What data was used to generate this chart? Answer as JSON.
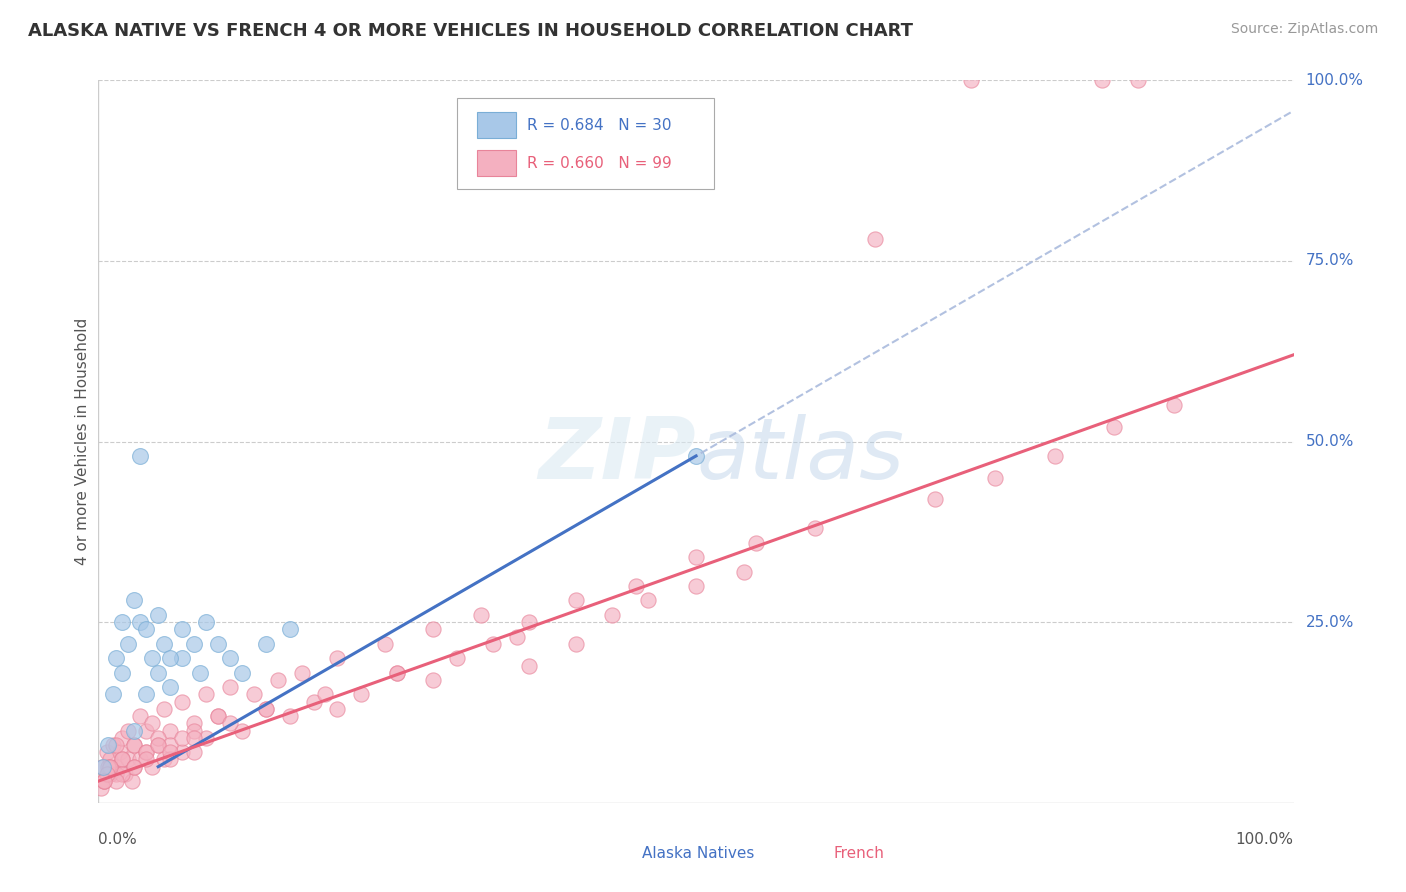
{
  "title": "ALASKA NATIVE VS FRENCH 4 OR MORE VEHICLES IN HOUSEHOLD CORRELATION CHART",
  "source": "Source: ZipAtlas.com",
  "ylabel": "4 or more Vehicles in Household",
  "alaska_color": "#a8c8e8",
  "alaska_edge_color": "#7aaed6",
  "french_color": "#f4b0c0",
  "french_edge_color": "#e8849a",
  "alaska_line_color": "#4472c4",
  "french_line_color": "#e8607a",
  "dash_line_color": "#aabbdd",
  "watermark_color": "#dde8f0",
  "right_tick_color": "#4472c4",
  "alaska_x": [
    0.4,
    0.8,
    1.2,
    1.5,
    2.0,
    2.5,
    3.0,
    3.5,
    4.0,
    4.5,
    5.0,
    5.5,
    6.0,
    7.0,
    8.5,
    10.0,
    11.0,
    12.0,
    14.0,
    16.0,
    2.0,
    3.0,
    4.0,
    5.0,
    6.0,
    7.0,
    8.0,
    9.0,
    3.5,
    50.0
  ],
  "alaska_y": [
    5.0,
    8.0,
    15.0,
    20.0,
    18.0,
    22.0,
    10.0,
    25.0,
    15.0,
    20.0,
    18.0,
    22.0,
    16.0,
    20.0,
    18.0,
    22.0,
    20.0,
    18.0,
    22.0,
    24.0,
    25.0,
    28.0,
    24.0,
    26.0,
    20.0,
    24.0,
    22.0,
    25.0,
    48.0,
    48.0
  ],
  "french_x": [
    0.2,
    0.3,
    0.5,
    0.7,
    0.8,
    1.0,
    1.2,
    1.5,
    1.8,
    2.0,
    2.2,
    2.5,
    2.8,
    3.0,
    3.5,
    4.0,
    4.5,
    5.0,
    5.5,
    6.0,
    7.0,
    8.0,
    9.0,
    10.0,
    12.0,
    14.0,
    16.0,
    18.0,
    20.0,
    22.0,
    25.0,
    28.0,
    30.0,
    33.0,
    36.0,
    40.0,
    43.0,
    46.0,
    50.0,
    54.0,
    0.5,
    1.0,
    1.5,
    2.0,
    3.0,
    4.0,
    5.0,
    6.0,
    8.0,
    10.0,
    1.0,
    2.0,
    3.0,
    4.0,
    5.0,
    6.0,
    7.0,
    8.0,
    0.8,
    1.5,
    2.5,
    3.5,
    4.5,
    5.5,
    7.0,
    9.0,
    11.0,
    13.0,
    15.0,
    17.0,
    20.0,
    24.0,
    28.0,
    32.0,
    36.0,
    40.0,
    45.0,
    50.0,
    60.0,
    70.0,
    75.0,
    80.0,
    85.0,
    90.0,
    55.0,
    35.0,
    25.0,
    19.0,
    14.0,
    11.0,
    8.0,
    6.0,
    4.0,
    3.0,
    2.0,
    1.5,
    1.0,
    0.7,
    0.5
  ],
  "french_y": [
    2.0,
    5.0,
    3.0,
    7.0,
    4.0,
    6.0,
    8.0,
    5.0,
    7.0,
    9.0,
    4.0,
    6.0,
    3.0,
    8.0,
    6.0,
    10.0,
    5.0,
    8.0,
    6.0,
    10.0,
    7.0,
    11.0,
    9.0,
    12.0,
    10.0,
    13.0,
    12.0,
    14.0,
    13.0,
    15.0,
    18.0,
    17.0,
    20.0,
    22.0,
    19.0,
    22.0,
    26.0,
    28.0,
    30.0,
    32.0,
    3.0,
    5.0,
    4.0,
    6.0,
    8.0,
    7.0,
    9.0,
    8.0,
    10.0,
    12.0,
    4.0,
    6.0,
    5.0,
    7.0,
    8.0,
    6.0,
    9.0,
    7.0,
    5.0,
    8.0,
    10.0,
    12.0,
    11.0,
    13.0,
    14.0,
    15.0,
    16.0,
    15.0,
    17.0,
    18.0,
    20.0,
    22.0,
    24.0,
    26.0,
    25.0,
    28.0,
    30.0,
    34.0,
    38.0,
    42.0,
    45.0,
    48.0,
    52.0,
    55.0,
    36.0,
    23.0,
    18.0,
    15.0,
    13.0,
    11.0,
    9.0,
    7.0,
    6.0,
    5.0,
    4.0,
    3.0,
    5.0,
    4.0,
    3.0
  ]
}
